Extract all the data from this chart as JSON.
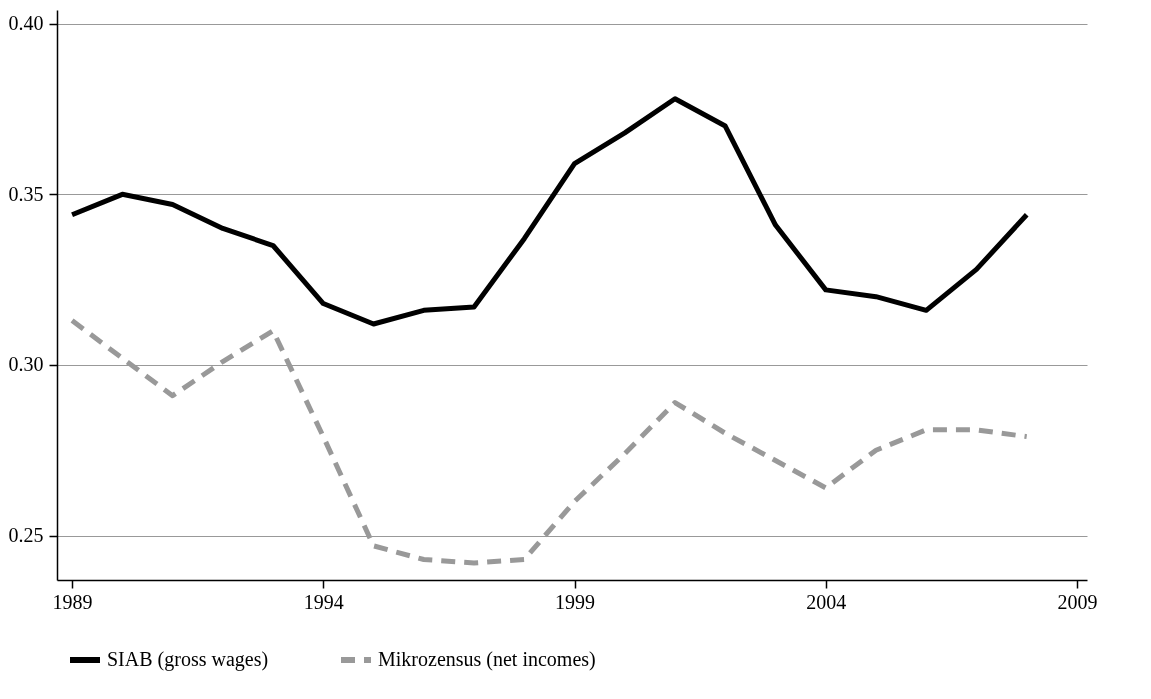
{
  "chart_data": {
    "type": "line",
    "x": [
      1989,
      1990,
      1991,
      1992,
      1993,
      1994,
      1995,
      1996,
      1997,
      1998,
      1999,
      2000,
      2001,
      2002,
      2003,
      2004,
      2005,
      2006,
      2007,
      2008
    ],
    "series": [
      {
        "name": "SIAB (gross wages)",
        "color": "#000000",
        "line_style": "solid",
        "values": [
          0.344,
          0.35,
          0.347,
          0.34,
          0.335,
          0.318,
          0.312,
          0.316,
          0.317,
          0.337,
          0.359,
          0.368,
          0.378,
          0.37,
          0.341,
          0.322,
          0.32,
          0.316,
          0.328,
          0.344
        ]
      },
      {
        "name": "Mikrozensus (net incomes)",
        "color": "#999999",
        "line_style": "dashed",
        "values": [
          0.313,
          0.302,
          0.291,
          0.301,
          0.31,
          0.279,
          0.247,
          0.243,
          0.242,
          0.243,
          0.26,
          0.274,
          0.289,
          0.28,
          0.272,
          0.264,
          0.275,
          0.281,
          0.281,
          0.279
        ]
      }
    ],
    "xlim": [
      1988.7,
      2009.2
    ],
    "xticks": [
      1989,
      1994,
      1999,
      2004,
      2009
    ],
    "ylim": [
      0.237,
      0.404
    ],
    "yticks": [
      {
        "value": 0.4,
        "label": "0.40"
      },
      0.35,
      {
        "value": 0.3,
        "label": "0.30"
      },
      0.25
    ],
    "grid": "y",
    "legend": "bottom",
    "marker": "none"
  }
}
